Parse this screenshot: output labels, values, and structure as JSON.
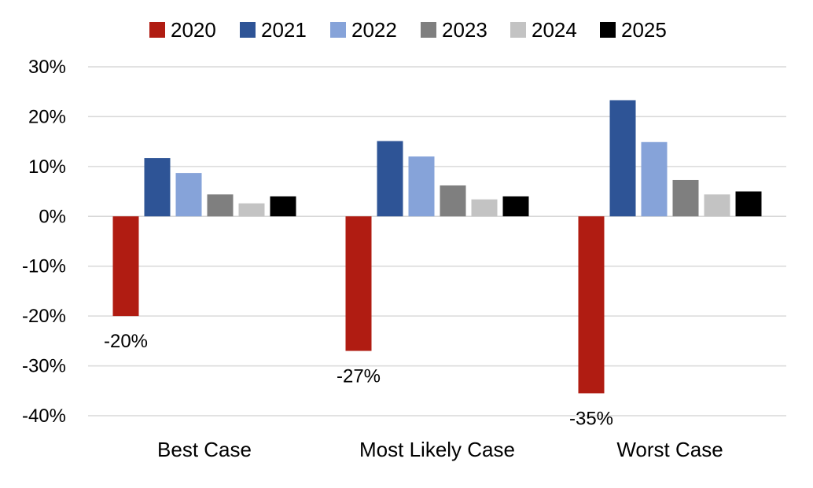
{
  "chart_data": {
    "type": "bar",
    "title": "",
    "xlabel": "",
    "ylabel": "",
    "categories": [
      "Best Case",
      "Most Likely Case",
      "Worst Case"
    ],
    "series": [
      {
        "name": "2020",
        "color": "#b01c12",
        "values": [
          -20,
          -27,
          -35.5
        ]
      },
      {
        "name": "2021",
        "color": "#2e5496",
        "values": [
          11.7,
          15.1,
          23.3
        ]
      },
      {
        "name": "2022",
        "color": "#86a3d9",
        "values": [
          8.7,
          12.0,
          14.9
        ]
      },
      {
        "name": "2023",
        "color": "#7f7f7f",
        "values": [
          4.4,
          6.2,
          7.3
        ]
      },
      {
        "name": "2024",
        "color": "#c3c3c3",
        "values": [
          2.6,
          3.4,
          4.4
        ]
      },
      {
        "name": "2025",
        "color": "#000000",
        "values": [
          4.0,
          4.0,
          5.0
        ]
      }
    ],
    "ylim": [
      -40,
      30
    ],
    "yticks": [
      30,
      20,
      10,
      0,
      -10,
      -20,
      -30,
      -40
    ],
    "ytick_labels": [
      "30%",
      "20%",
      "10%",
      "0%",
      "-10%",
      "-20%",
      "-30%",
      "-40%"
    ],
    "data_labels": [
      {
        "series": "2020",
        "category": "Best Case",
        "text": "-20%"
      },
      {
        "series": "2020",
        "category": "Most Likely Case",
        "text": "-27%"
      },
      {
        "series": "2020",
        "category": "Worst Case",
        "text": "-35%"
      }
    ],
    "grid": true,
    "legend": "top"
  }
}
